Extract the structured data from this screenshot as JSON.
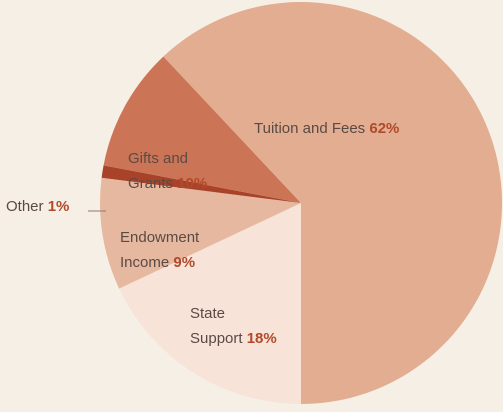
{
  "chart_data": {
    "type": "pie",
    "categories": [
      "State Support",
      "Endowment Income",
      "Other",
      "Gifts and Grants",
      "Tuition and Fees"
    ],
    "values": [
      18,
      9,
      1,
      10,
      62
    ],
    "value_labels": [
      "18%",
      "9%",
      "1%",
      "10%",
      "62%"
    ],
    "colors": [
      "#f8e3d8",
      "#e6b8a0",
      "#a8432a",
      "#cb7456",
      "#e2ad91"
    ]
  }
}
